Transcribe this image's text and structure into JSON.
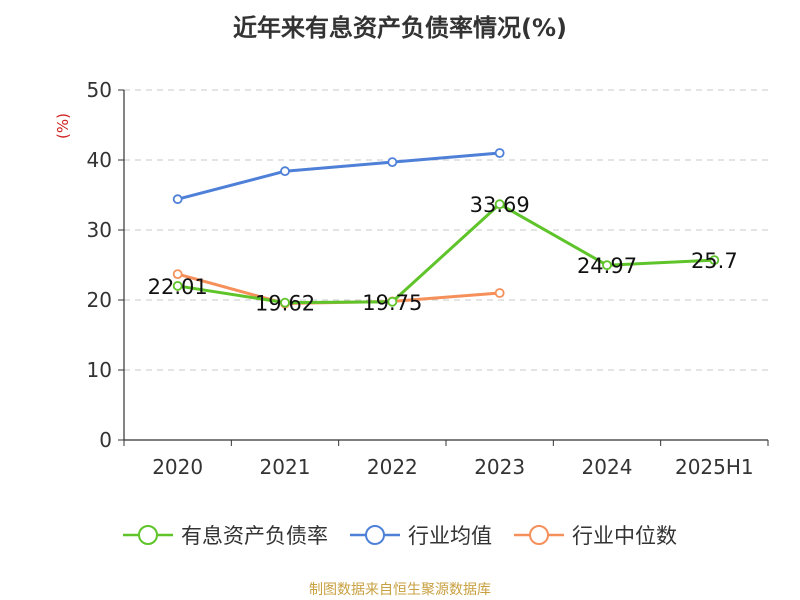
{
  "chart_data": {
    "type": "line",
    "title": "近年来有息资产负债率情况(%)",
    "ylabel": "(%)",
    "xlabel": "",
    "categories": [
      "2020",
      "2021",
      "2022",
      "2023",
      "2024",
      "2025H1"
    ],
    "ylim": [
      0,
      50
    ],
    "yticks": [
      0,
      10,
      20,
      30,
      40,
      50
    ],
    "grid": true,
    "legend_position": "bottom",
    "series": [
      {
        "name": "有息资产负债率",
        "color": "#5ec42a",
        "values": [
          22.01,
          19.62,
          19.75,
          33.69,
          24.97,
          25.7
        ],
        "labels": [
          "22.01",
          "19.62",
          "19.75",
          "33.69",
          "24.97",
          "25.7"
        ]
      },
      {
        "name": "行业均值",
        "color": "#4f80d8",
        "values": [
          34.4,
          38.4,
          39.7,
          41.0,
          null,
          null
        ]
      },
      {
        "name": "行业中位数",
        "color": "#f5905a",
        "values": [
          23.7,
          19.5,
          19.8,
          21.0,
          null,
          null
        ]
      }
    ],
    "source": "制图数据来自恒生聚源数据库"
  }
}
